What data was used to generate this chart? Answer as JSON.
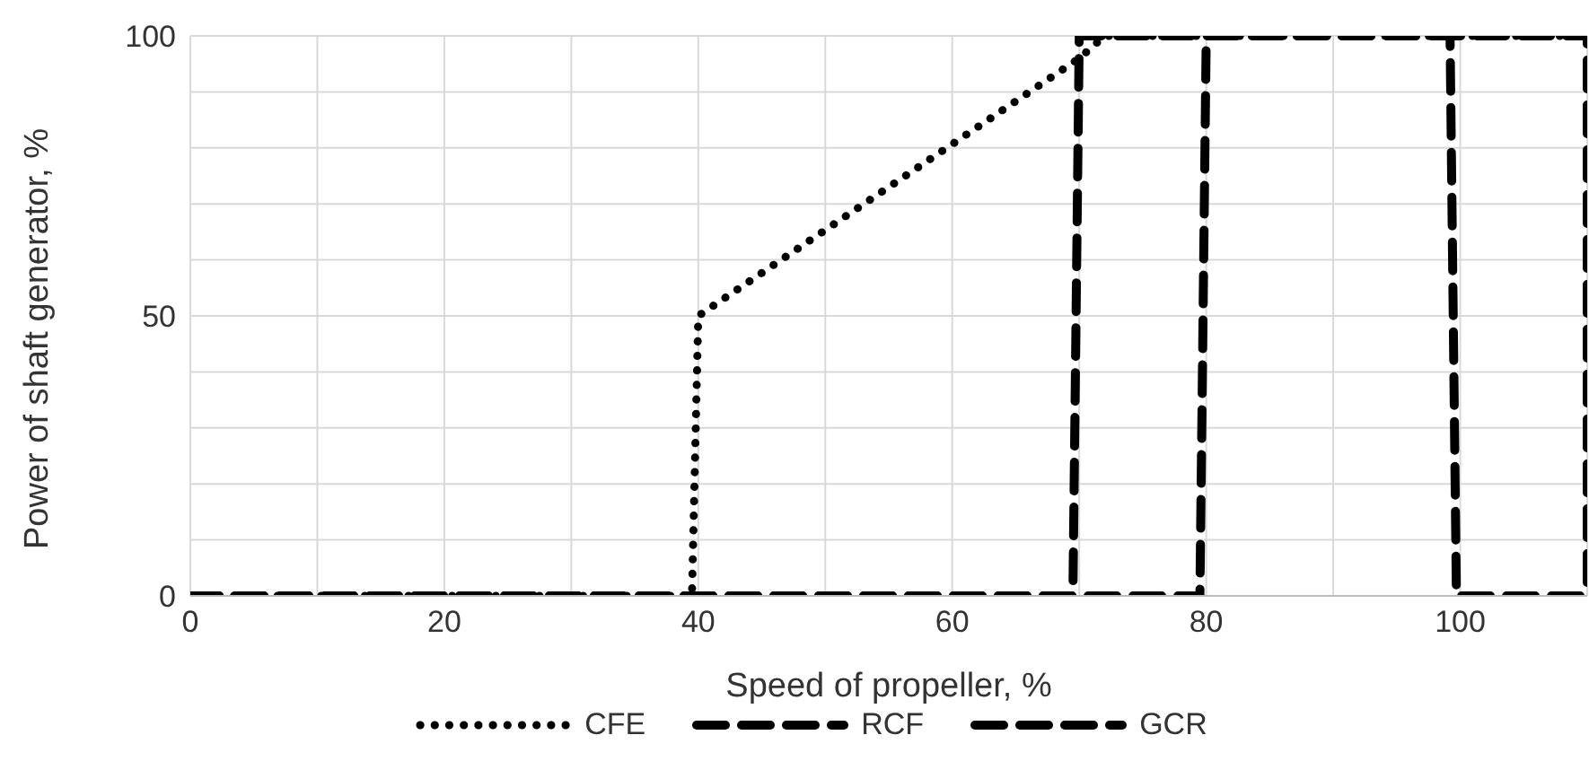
{
  "chart_data": {
    "type": "line",
    "xlabel": "Speed of  propeller, %",
    "ylabel": "Power of shaft generator, %",
    "xlim": [
      0,
      110
    ],
    "xticks": [
      0,
      {
        "value": 10,
        "label": null
      },
      20,
      {
        "value": 30,
        "label": null
      },
      40,
      {
        "value": 50,
        "label": null
      },
      60,
      {
        "value": 70,
        "label": null
      },
      80,
      {
        "value": 90,
        "label": null
      },
      100,
      {
        "value": 110,
        "label": null
      }
    ],
    "ylim": [
      0,
      100
    ],
    "yticks": [
      0,
      {
        "value": 10,
        "label": null
      },
      {
        "value": 20,
        "label": null
      },
      {
        "value": 30,
        "label": null
      },
      {
        "value": 40,
        "label": null
      },
      50,
      {
        "value": 60,
        "label": null
      },
      {
        "value": 70,
        "label": null
      },
      {
        "value": 80,
        "label": null
      },
      {
        "value": 90,
        "label": null
      },
      100
    ],
    "grid": true,
    "legend": "bottom",
    "marker": "none",
    "series": [
      {
        "name": "CFE",
        "color": "#000000",
        "line_style": "dotted",
        "x": [
          0,
          39.5,
          40,
          70,
          72,
          110
        ],
        "values": [
          0,
          0,
          50,
          96,
          100,
          100
        ]
      },
      {
        "name": "RCF",
        "color": "#000000",
        "line_style": "dashed",
        "x": [
          0,
          69.5,
          70,
          110,
          110
        ],
        "values": [
          0,
          0,
          100,
          100,
          0
        ]
      },
      {
        "name": "GCR",
        "color": "#000000",
        "line_style": "dashed",
        "x": [
          0,
          79.5,
          80,
          99.2,
          99.7,
          110
        ],
        "values": [
          0,
          0,
          100,
          100,
          0,
          0
        ]
      }
    ]
  }
}
